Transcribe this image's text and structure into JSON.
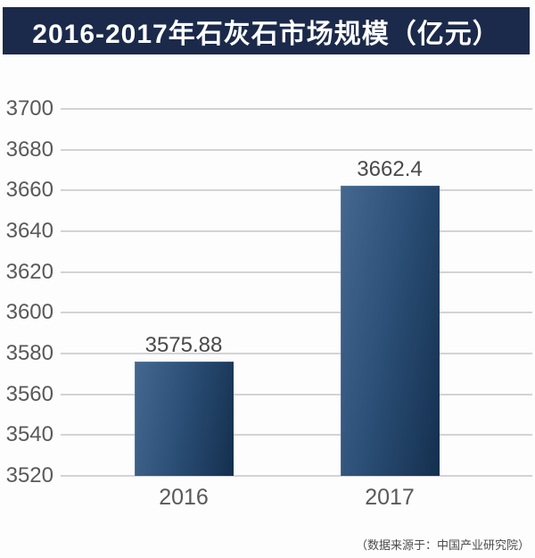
{
  "title": "2016-2017年石灰石市场规模（亿元）",
  "source_note": "（数据来源于：中国产业研究院）",
  "colors": {
    "banner_bg": "#1b2a4a",
    "banner_text": "#ffffff",
    "bar_gradient_left": "#44688f",
    "bar_gradient_mid": "#2c5078",
    "bar_gradient_right": "#142f4e",
    "gridline": "#d3d3d7",
    "axis_label": "#595959",
    "value_label": "#4a4a4a",
    "background": "#fdfdfe"
  },
  "chart_data": {
    "type": "bar",
    "title": "2016-2017年石灰石市场规模（亿元）",
    "categories": [
      "2016",
      "2017"
    ],
    "values": [
      3575.88,
      3662.4
    ],
    "value_labels": [
      "3575.88",
      "3662.4"
    ],
    "xlabel": "",
    "ylabel": "",
    "ylim": [
      3520,
      3700
    ],
    "ytick_step": 20,
    "yticks": [
      3700,
      3680,
      3660,
      3640,
      3620,
      3600,
      3580,
      3560,
      3540,
      3520
    ],
    "grid": true,
    "legend_position": "none",
    "source": "（数据来源于：中国产业研究院）"
  }
}
